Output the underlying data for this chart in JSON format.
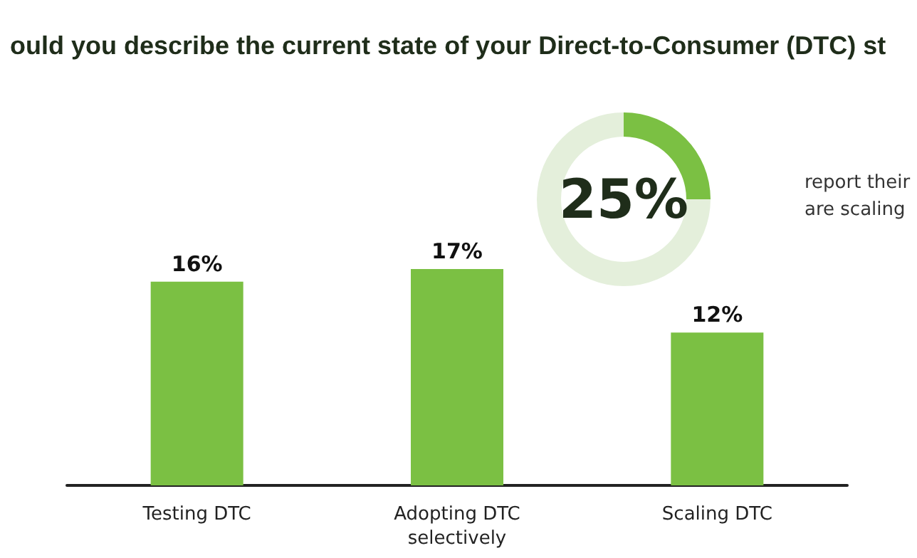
{
  "chart_data": [
    {
      "type": "bar",
      "title": "ould you describe the current state of your Direct-to-Consumer (DTC) st",
      "categories": [
        "Testing DTC",
        "Adopting DTC\nselectively",
        "Scaling DTC"
      ],
      "values": [
        16,
        17,
        12
      ],
      "color": "#7bc043",
      "value_labels": [
        "16%",
        "17%",
        "12%"
      ],
      "tick_labels": "x"
    },
    {
      "type": "donut",
      "categories": [
        null,
        null
      ],
      "values": [
        25,
        75
      ],
      "colors": [
        "#7bc043",
        "#e4efdb"
      ],
      "value_labels": [
        "25%",
        null
      ],
      "annotations": [
        "report their\nare scaling"
      ]
    }
  ]
}
